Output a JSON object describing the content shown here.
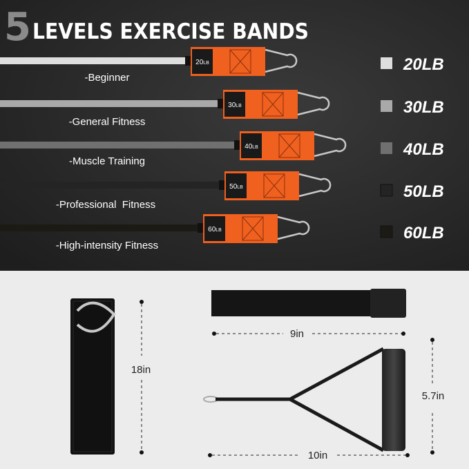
{
  "title": {
    "number": "5",
    "text": "LEVELS EXERCISE BANDS"
  },
  "colors": {
    "accent": "#f0601e",
    "top_bg": "#2b2b2b",
    "bottom_bg": "#ececec"
  },
  "bands": [
    {
      "tag": "20",
      "unit": "LB",
      "label": "-Beginner",
      "legend": "20LB",
      "color": "#dedede"
    },
    {
      "tag": "30",
      "unit": "LB",
      "label": "-General Fitness",
      "legend": "30LB",
      "color": "#a9a9a9"
    },
    {
      "tag": "40",
      "unit": "LB",
      "label": "-Muscle Training",
      "legend": "40LB",
      "color": "#707070"
    },
    {
      "tag": "50",
      "unit": "LB",
      "label": "-Professional  Fitness",
      "legend": "50LB",
      "color": "#242424"
    },
    {
      "tag": "60",
      "unit": "LB",
      "label": "-High-intensity Fitness",
      "legend": "60LB",
      "color": "#1c1a14"
    }
  ],
  "accessories": {
    "door_anchor_length": "18in",
    "ankle_strap_length": "9in",
    "handle_height": "5.7in",
    "handle_length": "10in"
  }
}
